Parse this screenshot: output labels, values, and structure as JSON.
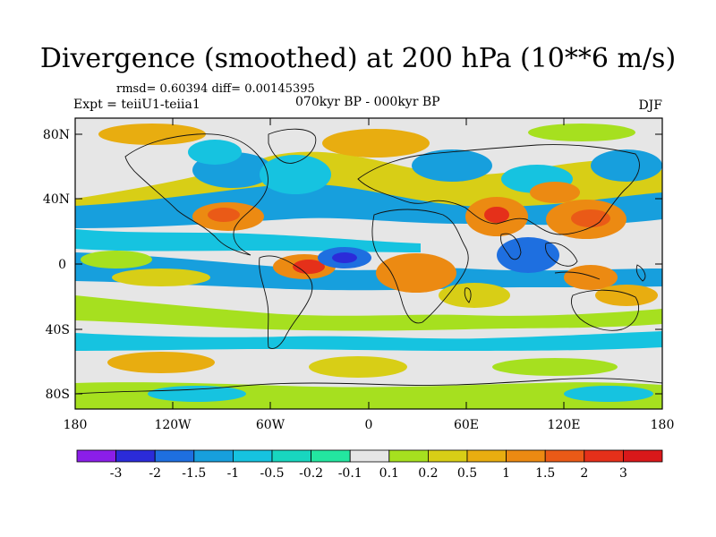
{
  "title": "Divergence (smoothed) at 200 hPa (10**6 m/s)",
  "stats": "rmsd= 0.60394 diff= 0.00145395",
  "experiment": "Expt = teiiU1-teiia1",
  "period": "070kyr BP - 000kyr BP",
  "season": "DJF",
  "map": {
    "lat_labels": [
      "80N",
      "40N",
      "0",
      "40S",
      "80S"
    ],
    "lon_labels": [
      "180",
      "120W",
      "60W",
      "0",
      "60E",
      "120E",
      "180"
    ]
  },
  "colorbar": {
    "labels": [
      "-3",
      "-2",
      "-1.5",
      "-1",
      "-0.5",
      "-0.2",
      "-0.1",
      "0.1",
      "0.2",
      "0.5",
      "1",
      "1.5",
      "2",
      "3"
    ],
    "colors": [
      "#8b1ee8",
      "#2b2bd9",
      "#1e6fe0",
      "#179fdd",
      "#16c3e0",
      "#18d6bf",
      "#23e6a0",
      "#e6e6e6",
      "#a6e01f",
      "#d8ce16",
      "#e8ad10",
      "#ec8a12",
      "#ea5a17",
      "#e5301a",
      "#d9181a"
    ]
  }
}
